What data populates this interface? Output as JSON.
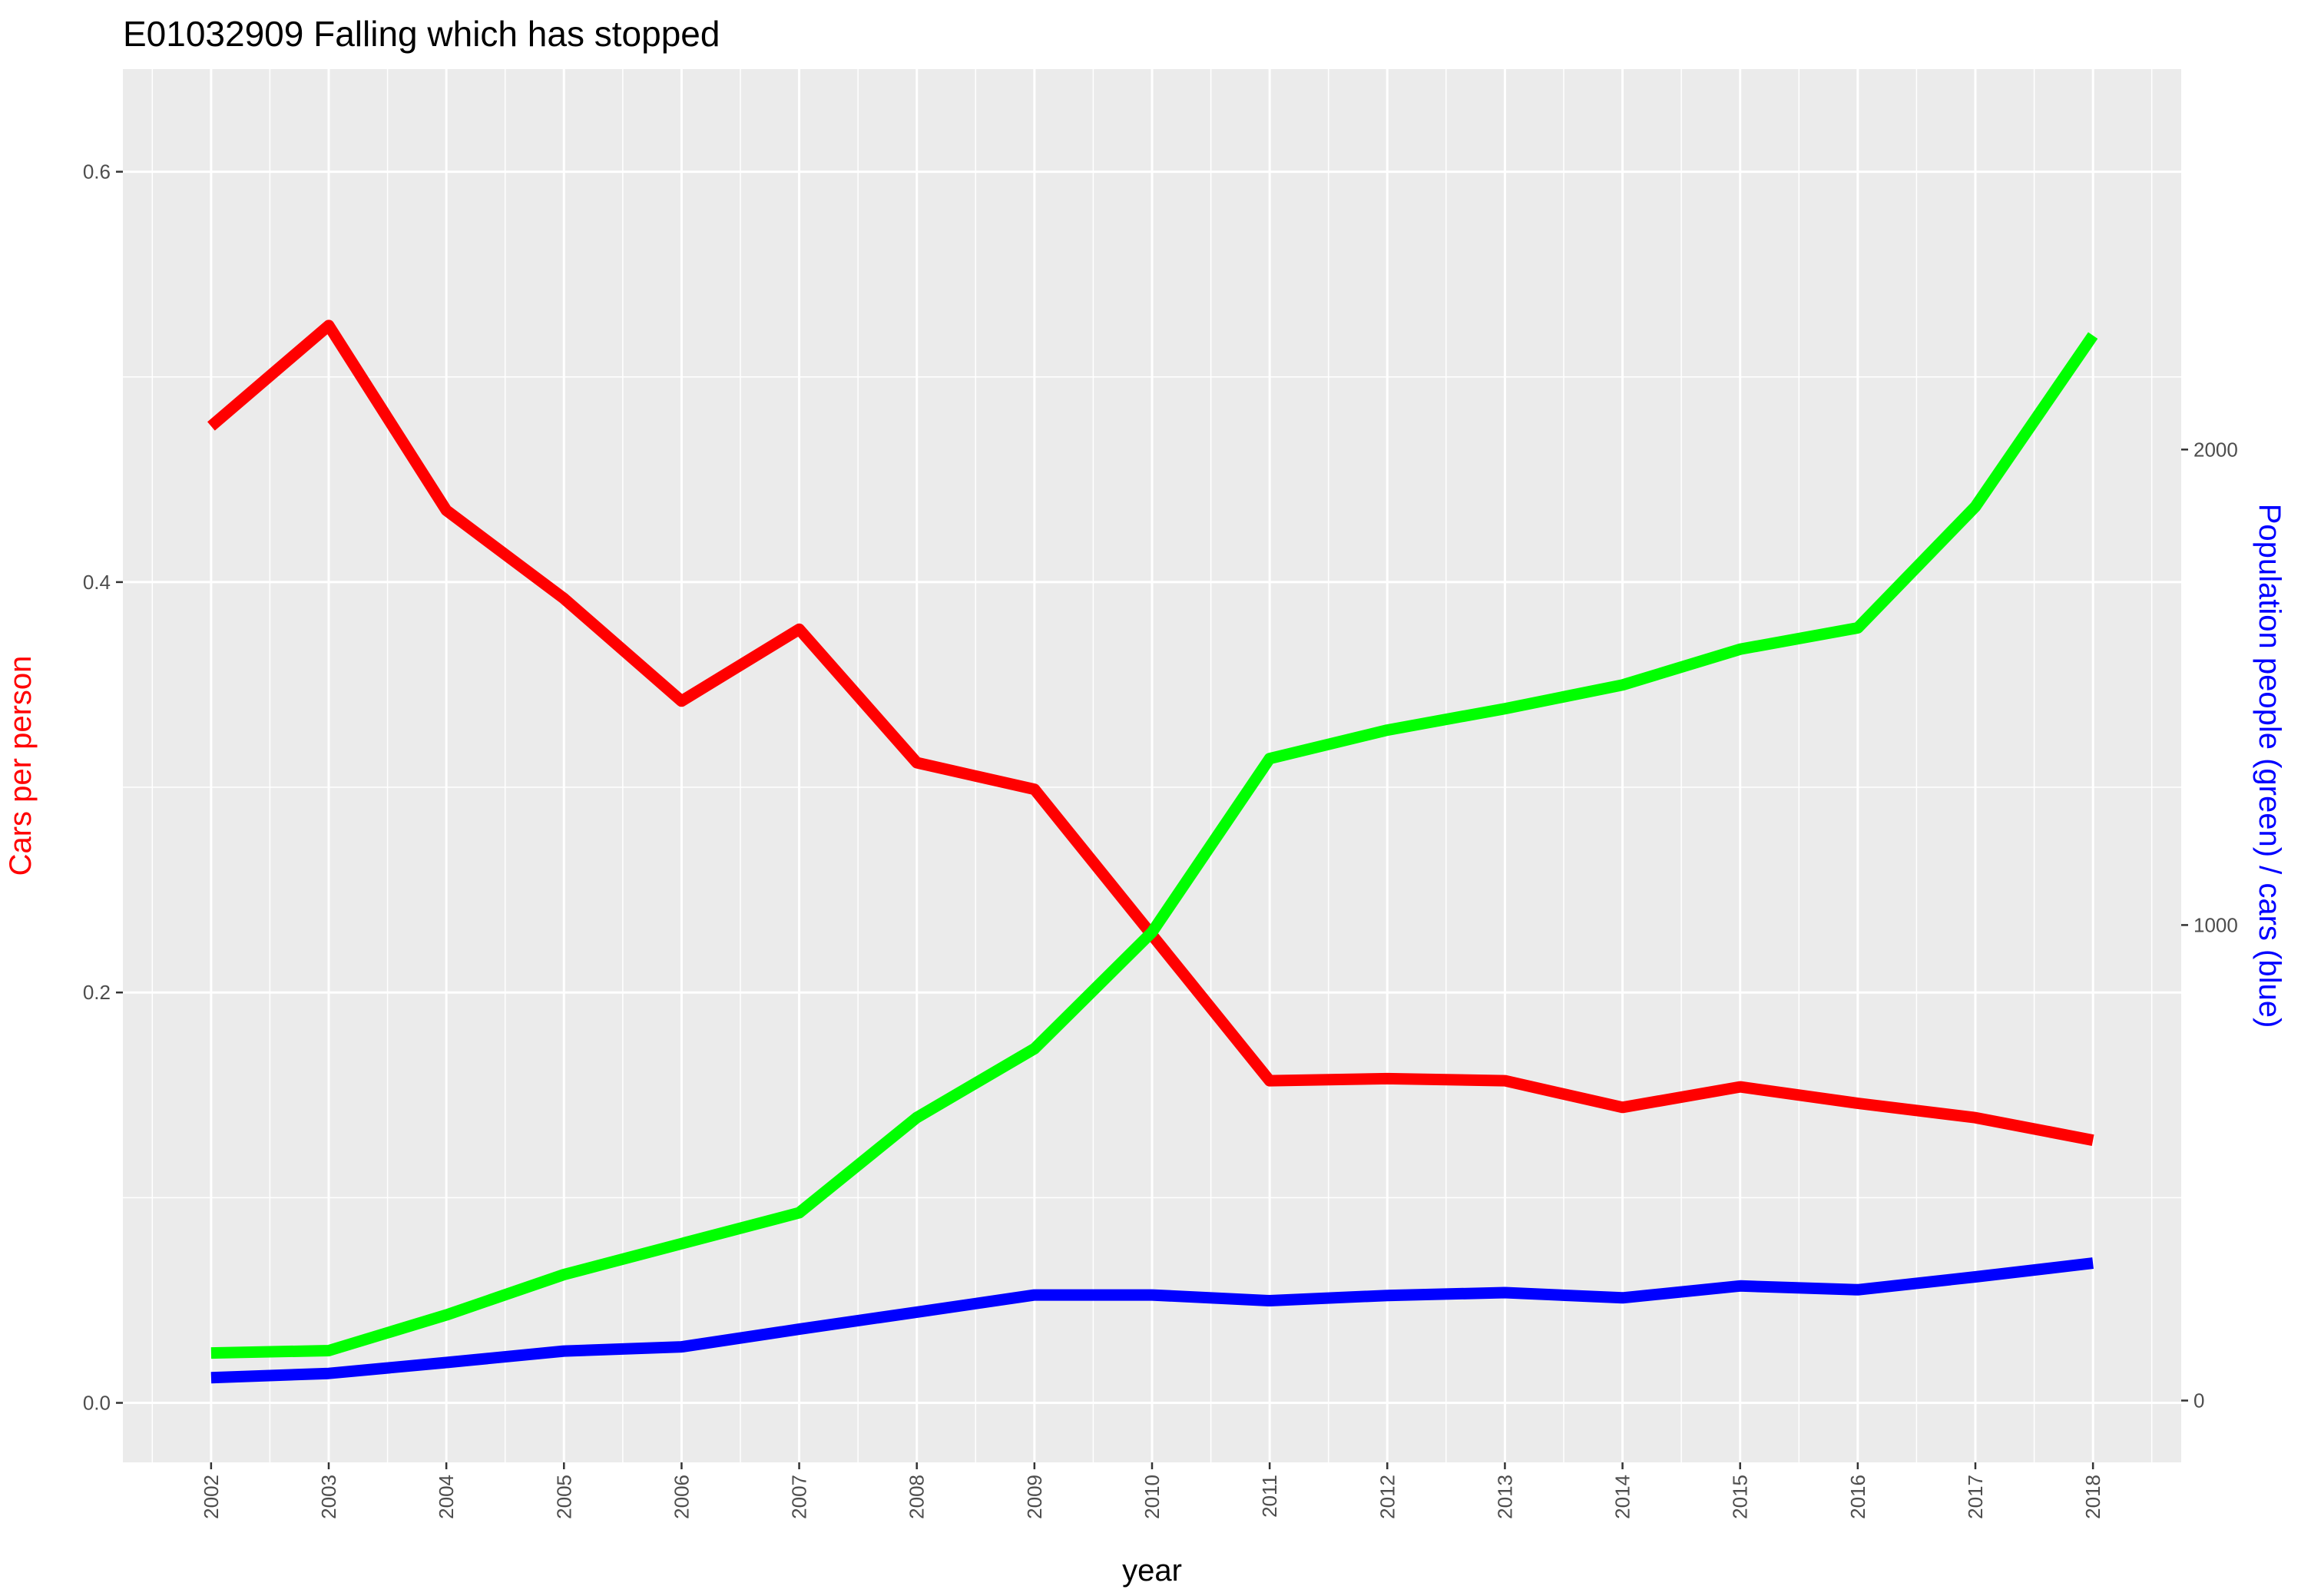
{
  "chart_data": {
    "type": "line",
    "title": "E01032909 Falling which has stopped",
    "xlabel": "year",
    "ylabel_left": "Cars per person",
    "ylabel_right": "Population people (green) / cars (blue)",
    "grid": true,
    "x": [
      2002,
      2003,
      2004,
      2005,
      2006,
      2007,
      2008,
      2009,
      2010,
      2011,
      2012,
      2013,
      2014,
      2015,
      2016,
      2017,
      2018
    ],
    "xlim": [
      2001.25,
      2018.75
    ],
    "left_axis": {
      "ylim": [
        -0.029,
        0.65
      ],
      "ticks": [
        0.0,
        0.2,
        0.4,
        0.6
      ],
      "tick_labels": [
        "0.0",
        "0.2",
        "0.4",
        "0.6"
      ]
    },
    "right_axis": {
      "ylim": [
        -130,
        2800
      ],
      "ticks": [
        0,
        1000,
        2000
      ],
      "tick_labels": [
        "0",
        "1000",
        "2000"
      ]
    },
    "colors": {
      "panel": "#ebebeb",
      "grid": "#ffffff",
      "tick": "#333333",
      "left_title": "#ff0000",
      "right_title": "#0000ff"
    },
    "series": [
      {
        "axis": "left",
        "color": "#ff0000",
        "values": [
          0.476,
          0.525,
          0.435,
          0.392,
          0.342,
          0.377,
          0.312,
          0.299,
          0.228,
          0.157,
          0.158,
          0.157,
          0.144,
          0.154,
          0.146,
          0.139,
          0.128
        ]
      },
      {
        "axis": "right",
        "color": "#00ff00",
        "values": [
          100,
          105,
          180,
          265,
          330,
          395,
          595,
          740,
          985,
          1350,
          1410,
          1455,
          1505,
          1580,
          1625,
          1880,
          2240
        ]
      },
      {
        "axis": "right",
        "color": "#0000ff",
        "values": [
          48,
          57,
          80,
          104,
          113,
          150,
          186,
          222,
          222,
          210,
          221,
          227,
          216,
          241,
          233,
          260,
          289
        ]
      }
    ]
  }
}
